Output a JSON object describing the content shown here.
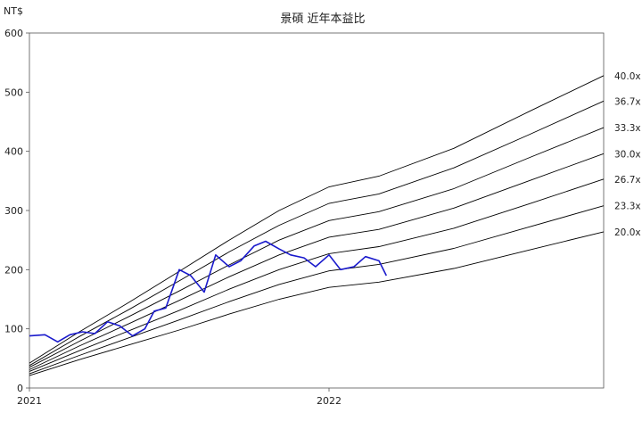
{
  "chart_data": {
    "type": "line",
    "title": "景碩 近年本益比",
    "ylabel": "NT$",
    "xlabel": "",
    "ylim": [
      0,
      600
    ],
    "xlim": [
      "2021-01",
      "2022-12"
    ],
    "y_ticks": [
      0,
      100,
      200,
      300,
      400,
      500,
      600
    ],
    "x_ticks": [
      {
        "label": "2021",
        "date": "2021-01"
      },
      {
        "label": "2022",
        "date": "2022-01"
      }
    ],
    "grid": false,
    "legend": "none",
    "colors": {
      "price": "#1a1acc",
      "bands": "#000000"
    },
    "series": [
      {
        "name": "40.0x",
        "x": [
          "2021-01",
          "2021-03",
          "2021-05",
          "2021-07",
          "2021-09",
          "2021-11",
          "2022-01",
          "2022-03",
          "2022-06",
          "2022-09",
          "2022-12"
        ],
        "values": [
          42,
          95,
          145,
          197,
          250,
          300,
          340,
          358,
          405,
          467,
          528
        ]
      },
      {
        "name": "36.7x",
        "x": [
          "2021-01",
          "2021-03",
          "2021-05",
          "2021-07",
          "2021-09",
          "2021-11",
          "2022-01",
          "2022-03",
          "2022-06",
          "2022-09",
          "2022-12"
        ],
        "values": [
          38,
          87,
          133,
          181,
          230,
          275,
          312,
          328,
          372,
          428,
          485
        ]
      },
      {
        "name": "33.3x",
        "x": [
          "2021-01",
          "2021-03",
          "2021-05",
          "2021-07",
          "2021-09",
          "2021-11",
          "2022-01",
          "2022-03",
          "2022-06",
          "2022-09",
          "2022-12"
        ],
        "values": [
          35,
          79,
          121,
          164,
          208,
          250,
          283,
          298,
          337,
          389,
          440
        ]
      },
      {
        "name": "30.0x",
        "x": [
          "2021-01",
          "2021-03",
          "2021-05",
          "2021-07",
          "2021-09",
          "2021-11",
          "2022-01",
          "2022-03",
          "2022-06",
          "2022-09",
          "2022-12"
        ],
        "values": [
          31,
          71,
          109,
          148,
          188,
          225,
          255,
          268,
          304,
          350,
          396
        ]
      },
      {
        "name": "26.7x",
        "x": [
          "2021-01",
          "2021-03",
          "2021-05",
          "2021-07",
          "2021-09",
          "2021-11",
          "2022-01",
          "2022-03",
          "2022-06",
          "2022-09",
          "2022-12"
        ],
        "values": [
          28,
          63,
          97,
          131,
          167,
          200,
          227,
          239,
          270,
          311,
          353
        ]
      },
      {
        "name": "23.3x",
        "x": [
          "2021-01",
          "2021-03",
          "2021-05",
          "2021-07",
          "2021-09",
          "2021-11",
          "2022-01",
          "2022-03",
          "2022-06",
          "2022-09",
          "2022-12"
        ],
        "values": [
          24,
          55,
          85,
          115,
          146,
          175,
          198,
          209,
          236,
          272,
          308
        ]
      },
      {
        "name": "20.0x",
        "x": [
          "2021-01",
          "2021-03",
          "2021-05",
          "2021-07",
          "2021-09",
          "2021-11",
          "2022-01",
          "2022-03",
          "2022-06",
          "2022-09",
          "2022-12"
        ],
        "values": [
          21,
          48,
          73,
          98,
          125,
          150,
          170,
          179,
          202,
          233,
          264
        ]
      },
      {
        "x": [
          "2021-01-01",
          "2021-01-20",
          "2021-02-05",
          "2021-02-20",
          "2021-03-05",
          "2021-03-20",
          "2021-04-05",
          "2021-04-20",
          "2021-05-05",
          "2021-05-20",
          "2021-06-01",
          "2021-06-15",
          "2021-07-01",
          "2021-07-15",
          "2021-08-01",
          "2021-08-15",
          "2021-09-01",
          "2021-09-15",
          "2021-10-01",
          "2021-10-15",
          "2021-11-01",
          "2021-11-15",
          "2021-12-01",
          "2021-12-15",
          "2022-01-01",
          "2022-01-15",
          "2022-02-01",
          "2022-02-15",
          "2022-03-01",
          "2022-03-10"
        ],
        "values": [
          88,
          90,
          78,
          90,
          95,
          92,
          112,
          105,
          88,
          100,
          130,
          135,
          200,
          190,
          162,
          225,
          205,
          215,
          240,
          248,
          235,
          225,
          220,
          205,
          225,
          200,
          205,
          222,
          215,
          190
        ]
      }
    ]
  }
}
